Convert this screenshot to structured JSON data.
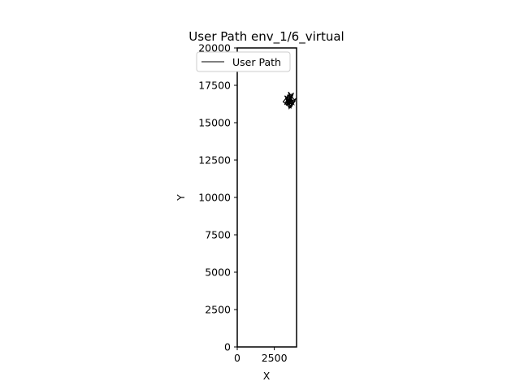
{
  "chart_data": {
    "type": "line",
    "title": "User Path env_1/6_virtual",
    "xlabel": "X",
    "ylabel": "Y",
    "xlim": [
      0,
      4000
    ],
    "ylim": [
      0,
      20000
    ],
    "xticks": [
      0,
      2500
    ],
    "xtick_labels": [
      "0",
      "2500"
    ],
    "yticks": [
      0,
      2500,
      5000,
      7500,
      10000,
      12500,
      15000,
      17500,
      20000
    ],
    "ytick_labels": [
      "0",
      "2500",
      "5000",
      "7500",
      "10000",
      "12500",
      "15000",
      "17500",
      "20000"
    ],
    "grid": false,
    "legend": {
      "position": "upper-left",
      "entries": [
        "User Path"
      ]
    },
    "series": [
      {
        "name": "User Path",
        "color": "#000000",
        "x": [
          3300,
          3500,
          3200,
          3650,
          3400,
          3800,
          3550,
          3200,
          3750,
          3500,
          3300,
          3700,
          3450,
          3900,
          3600,
          3250,
          3800,
          3500,
          3100,
          3600,
          3400,
          3850,
          3550,
          3300,
          3700,
          3450,
          3950,
          3650,
          3350
        ],
        "y": [
          16500,
          16900,
          16200,
          16700,
          16100,
          17000,
          16300,
          16800,
          16400,
          15950,
          16600,
          16200,
          17050,
          16450,
          16050,
          16650,
          16250,
          16900,
          16400,
          16000,
          16800,
          16350,
          16700,
          16150,
          16950,
          16300,
          16600,
          16050,
          16500
        ]
      }
    ]
  }
}
